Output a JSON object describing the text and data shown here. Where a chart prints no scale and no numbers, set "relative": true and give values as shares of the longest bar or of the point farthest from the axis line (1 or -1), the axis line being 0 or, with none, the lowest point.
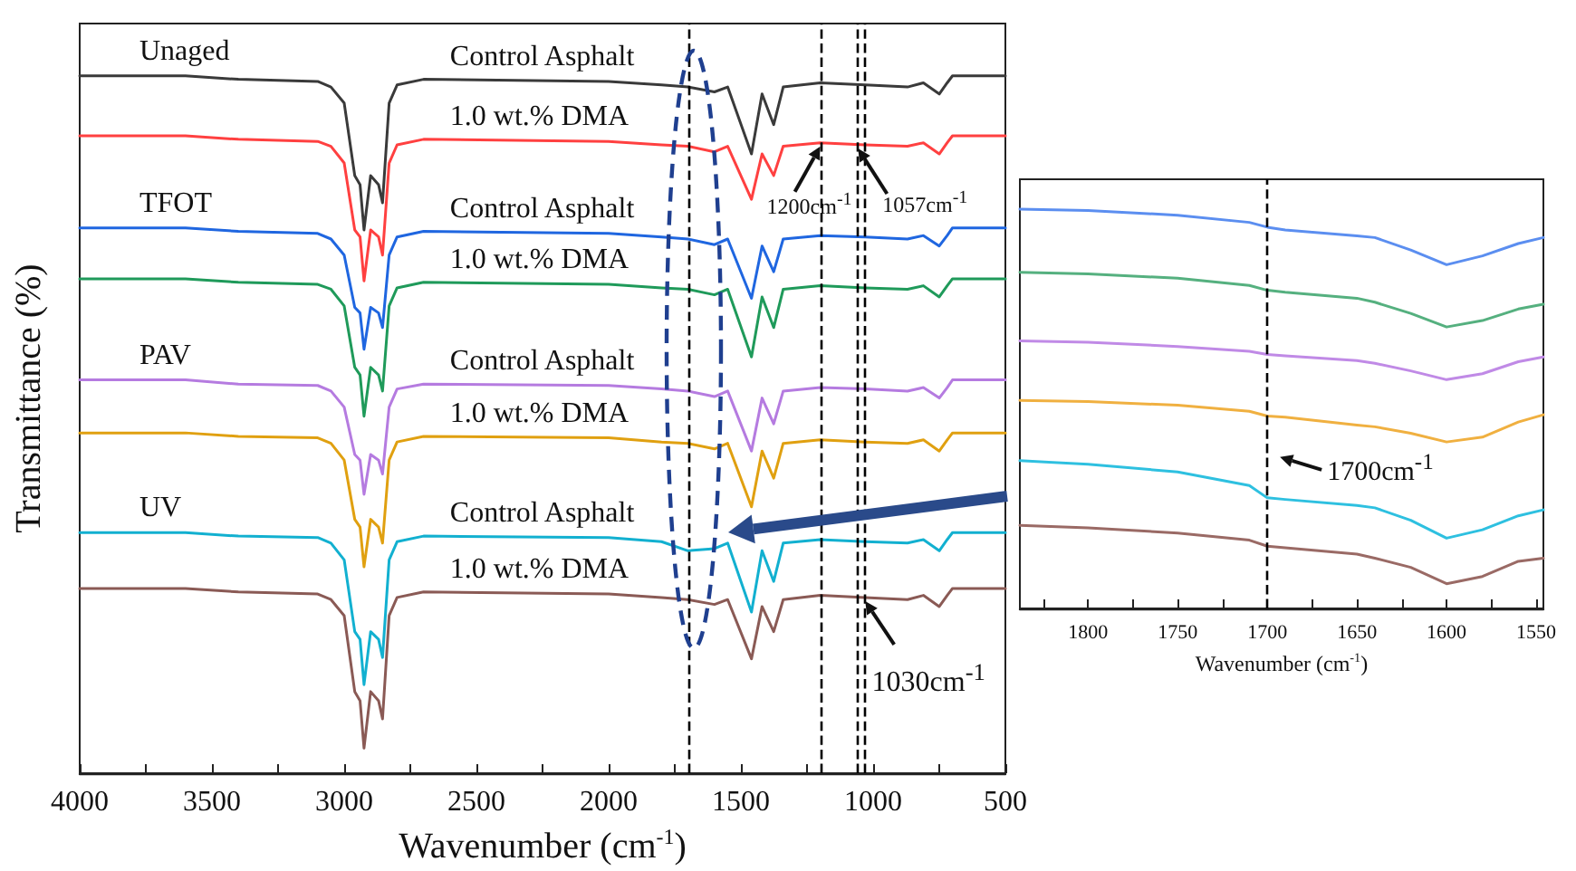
{
  "chart_data": [
    {
      "type": "line",
      "xlabel": "Wavenumber (cm$^{-1}$)",
      "ylabel": "Transmittance (%)",
      "relative": true,
      "x": [
        4000,
        3600,
        3400,
        3100,
        3050,
        3000,
        2960,
        2940,
        2925,
        2900,
        2870,
        2855,
        2830,
        2800,
        2700,
        2000,
        1800,
        1700,
        1600,
        1550,
        1460,
        1420,
        1376,
        1340,
        1200,
        1030,
        870,
        810,
        750,
        720,
        700,
        500
      ],
      "xlim": [
        4000,
        500
      ],
      "xticks": [
        4000,
        {
          "value": 3750,
          "label": null
        },
        3500,
        {
          "value": 3250,
          "label": null
        },
        3000,
        {
          "value": 2750,
          "label": null
        },
        2500,
        {
          "value": 2250,
          "label": null
        },
        2000,
        {
          "value": 1750,
          "label": null
        },
        1500,
        {
          "value": 1250,
          "label": null
        },
        1000,
        {
          "value": 750,
          "label": null
        },
        500
      ],
      "tick_labels": "x",
      "grid": false,
      "legend": false,
      "marker": "none",
      "line_style": "solid",
      "annotations": [
        "Unaged",
        "TFOT",
        "PAV",
        "UV",
        {
          "text": "1200cm$^{-1}$",
          "x": 1200,
          "y": 0.904
        },
        {
          "text": "1057cm$^{-1}$",
          "x": 1057,
          "y": 0.901
        },
        {
          "text": "1030cm$^{-1}$",
          "x": 1030,
          "y": 0.252
        }
      ],
      "ref_lines": [
        {
          "axis": "x",
          "value": 1700,
          "line_style": "dashed",
          "color": "#000000"
        },
        {
          "axis": "x",
          "value": 1200,
          "line_style": "dashed",
          "color": "#000000"
        },
        {
          "axis": "x",
          "value": 1057,
          "line_style": "dashed",
          "color": "#000000"
        },
        {
          "axis": "x",
          "value": 1030,
          "line_style": "dashed",
          "color": "#000000"
        }
      ],
      "series": [
        {
          "name": "Control Asphalt",
          "color": "#3a3a3a",
          "values": [
            1,
            1,
            0.995,
            0.992,
            0.984,
            0.961,
            0.857,
            0.844,
            0.779,
            0.857,
            0.844,
            0.818,
            0.961,
            0.987,
            0.995,
            0.992,
            0.987,
            0.984,
            0.977,
            0.984,
            0.888,
            0.974,
            0.93,
            0.984,
            0.99,
            0.987,
            0.984,
            0.99,
            0.974,
            0.99,
            1,
            1
          ]
        },
        {
          "name": "1.0 wt.% DMA",
          "color": "#ff4040",
          "values": [
            0.914,
            0.914,
            0.909,
            0.906,
            0.899,
            0.875,
            0.779,
            0.769,
            0.706,
            0.779,
            0.769,
            0.743,
            0.875,
            0.901,
            0.909,
            0.906,
            0.901,
            0.899,
            0.891,
            0.899,
            0.823,
            0.888,
            0.857,
            0.899,
            0.904,
            0.901,
            0.899,
            0.904,
            0.888,
            0.904,
            0.914,
            0.914
          ]
        },
        {
          "name": "Control Asphalt",
          "color": "#1f66e0",
          "values": [
            0.782,
            0.782,
            0.777,
            0.774,
            0.766,
            0.743,
            0.668,
            0.66,
            0.608,
            0.668,
            0.66,
            0.639,
            0.743,
            0.769,
            0.777,
            0.774,
            0.769,
            0.766,
            0.758,
            0.766,
            0.681,
            0.756,
            0.719,
            0.766,
            0.771,
            0.769,
            0.766,
            0.771,
            0.756,
            0.771,
            0.782,
            0.782
          ]
        },
        {
          "name": "1.0 wt.% DMA",
          "color": "#1f9a5a",
          "values": [
            0.709,
            0.709,
            0.704,
            0.701,
            0.694,
            0.67,
            0.582,
            0.571,
            0.512,
            0.582,
            0.571,
            0.548,
            0.67,
            0.696,
            0.704,
            0.701,
            0.696,
            0.694,
            0.686,
            0.694,
            0.597,
            0.683,
            0.639,
            0.694,
            0.699,
            0.696,
            0.694,
            0.699,
            0.683,
            0.699,
            0.709,
            0.709
          ]
        },
        {
          "name": "Control Asphalt",
          "color": "#b57be0",
          "values": [
            0.564,
            0.564,
            0.558,
            0.556,
            0.548,
            0.525,
            0.457,
            0.449,
            0.4,
            0.457,
            0.449,
            0.429,
            0.525,
            0.551,
            0.558,
            0.556,
            0.551,
            0.548,
            0.54,
            0.548,
            0.462,
            0.538,
            0.501,
            0.548,
            0.553,
            0.551,
            0.548,
            0.553,
            0.538,
            0.553,
            0.564,
            0.564
          ]
        },
        {
          "name": "1.0 wt.% DMA",
          "color": "#e0a010",
          "values": [
            0.488,
            0.488,
            0.483,
            0.481,
            0.473,
            0.449,
            0.364,
            0.353,
            0.296,
            0.364,
            0.353,
            0.33,
            0.449,
            0.475,
            0.483,
            0.481,
            0.475,
            0.473,
            0.465,
            0.473,
            0.382,
            0.462,
            0.423,
            0.473,
            0.478,
            0.475,
            0.473,
            0.478,
            0.462,
            0.478,
            0.488,
            0.488
          ]
        },
        {
          "name": "Control Asphalt",
          "color": "#12b0d0",
          "values": [
            0.345,
            0.345,
            0.34,
            0.338,
            0.33,
            0.306,
            0.203,
            0.192,
            0.127,
            0.203,
            0.192,
            0.166,
            0.306,
            0.332,
            0.34,
            0.338,
            0.332,
            0.319,
            0.322,
            0.33,
            0.231,
            0.319,
            0.275,
            0.33,
            0.335,
            0.332,
            0.33,
            0.335,
            0.319,
            0.335,
            0.345,
            0.345
          ]
        },
        {
          "name": "1.0 wt.% DMA",
          "color": "#8a5a55",
          "values": [
            0.265,
            0.265,
            0.26,
            0.257,
            0.249,
            0.226,
            0.117,
            0.104,
            0.036,
            0.117,
            0.104,
            0.078,
            0.226,
            0.252,
            0.26,
            0.257,
            0.252,
            0.249,
            0.242,
            0.249,
            0.164,
            0.239,
            0.203,
            0.249,
            0.255,
            0.252,
            0.249,
            0.255,
            0.239,
            0.255,
            0.265,
            0.265
          ]
        }
      ]
    },
    {
      "type": "line",
      "xlabel": "Wavenumber (cm$^{-1}$)",
      "relative": true,
      "x": [
        1838,
        1800,
        1750,
        1710,
        1700,
        1690,
        1650,
        1640,
        1620,
        1600,
        1580,
        1560,
        1546
      ],
      "xlim": [
        1838,
        1546
      ],
      "xticks": [
        {
          "value": 1825,
          "label": null
        },
        1800,
        {
          "value": 1775,
          "label": null
        },
        1750,
        {
          "value": 1725,
          "label": null
        },
        1700,
        {
          "value": 1675,
          "label": null
        },
        1650,
        {
          "value": 1625,
          "label": null
        },
        1600,
        {
          "value": 1575,
          "label": null
        },
        1550
      ],
      "tick_labels": "x",
      "grid": false,
      "legend": false,
      "marker": "none",
      "line_style": "solid",
      "annotations": [
        {
          "text": "1700cm$^{-1}$",
          "x": 1700,
          "y": 0.37
        }
      ],
      "ref_lines": [
        {
          "axis": "x",
          "value": 1700,
          "line_style": "dashed",
          "color": "#000000"
        }
      ],
      "series": [
        {
          "color": "#5b8ef0",
          "values": [
            1,
            0.997,
            0.985,
            0.967,
            0.955,
            0.948,
            0.933,
            0.929,
            0.898,
            0.861,
            0.883,
            0.914,
            0.929
          ]
        },
        {
          "color": "#55b07f",
          "values": [
            0.842,
            0.838,
            0.827,
            0.809,
            0.797,
            0.792,
            0.777,
            0.767,
            0.739,
            0.705,
            0.721,
            0.75,
            0.762
          ]
        },
        {
          "color": "#c08ae6",
          "values": [
            0.67,
            0.667,
            0.656,
            0.644,
            0.636,
            0.633,
            0.621,
            0.614,
            0.595,
            0.573,
            0.588,
            0.618,
            0.63
          ]
        },
        {
          "color": "#f0b040",
          "values": [
            0.521,
            0.518,
            0.509,
            0.494,
            0.482,
            0.479,
            0.459,
            0.455,
            0.439,
            0.417,
            0.429,
            0.467,
            0.485
          ]
        },
        {
          "color": "#2ec0e0",
          "values": [
            0.37,
            0.361,
            0.342,
            0.308,
            0.277,
            0.273,
            0.258,
            0.252,
            0.221,
            0.176,
            0.197,
            0.232,
            0.247
          ]
        },
        {
          "color": "#9a6a65",
          "values": [
            0.208,
            0.202,
            0.189,
            0.171,
            0.156,
            0.152,
            0.136,
            0.126,
            0.103,
            0.062,
            0.08,
            0.118,
            0.126
          ]
        }
      ]
    }
  ]
}
